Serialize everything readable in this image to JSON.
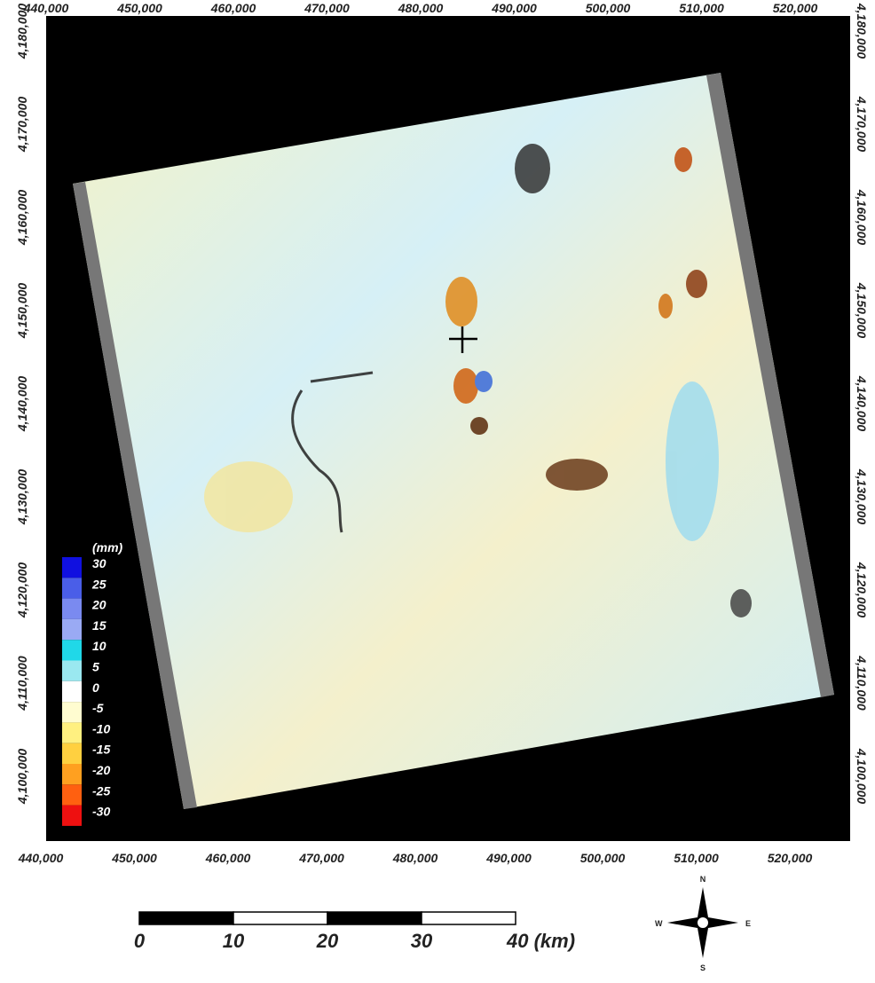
{
  "map": {
    "x_labels_top": [
      "440,000",
      "450,000",
      "460,000",
      "470,000",
      "480,000",
      "490,000",
      "500,000",
      "510,000",
      "520,000"
    ],
    "x_labels_bottom": [
      "440,000",
      "450,000",
      "460,000",
      "470,000",
      "480,000",
      "490,000",
      "500,000",
      "510,000",
      "520,000"
    ],
    "y_labels_left": [
      "4,180,000",
      "4,170,000",
      "4,160,000",
      "4,150,000",
      "4,140,000",
      "4,130,000",
      "4,120,000",
      "4,110,000",
      "4,100,000"
    ],
    "y_labels_right": [
      "4,180,000",
      "4,170,000",
      "4,160,000",
      "4,150,000",
      "4,140,000",
      "4,130,000",
      "4,120,000",
      "4,110,000",
      "4,100,000"
    ],
    "legend": {
      "unit": "(mm)",
      "labels": [
        "30",
        "25",
        "20",
        "15",
        "10",
        "5",
        "0",
        "-5",
        "-10",
        "-15",
        "-20",
        "-25",
        "-30"
      ]
    },
    "scale_bar": {
      "labels": [
        "0",
        "10",
        "20",
        "30",
        "40 (km)"
      ]
    },
    "compass": {
      "n": "N",
      "s": "S",
      "e": "E",
      "w": "W"
    }
  }
}
